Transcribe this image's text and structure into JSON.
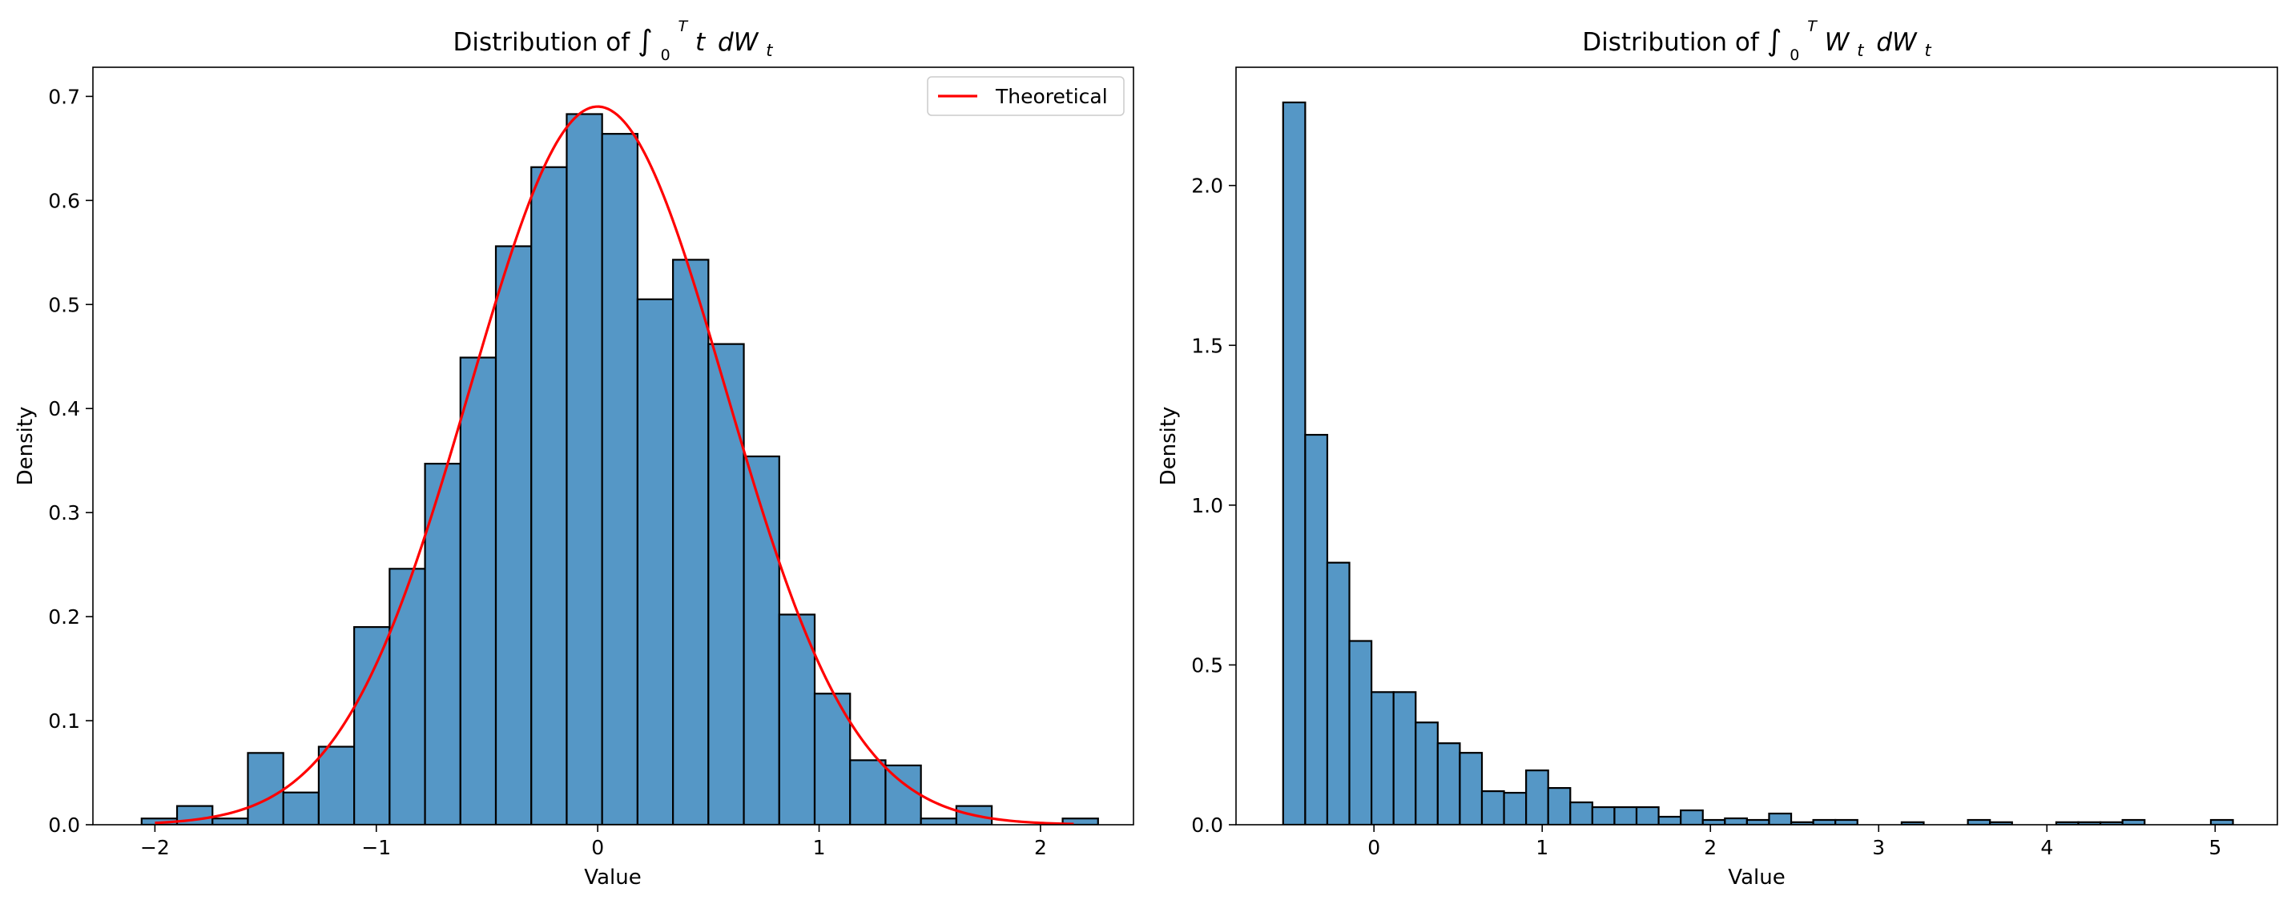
{
  "chart_data": [
    {
      "type": "bar",
      "title_prefix": "Distribution of",
      "title_math": {
        "upper": "T",
        "lower": "0",
        "integrand_left": "t",
        "integrand_right": "dW",
        "integrand_sub": "t"
      },
      "xlabel": "Value",
      "ylabel": "Density",
      "xlim": [
        -2.28,
        2.42
      ],
      "ylim": [
        0,
        0.728
      ],
      "xticks": [
        -2,
        -1,
        0,
        1,
        2
      ],
      "xtick_labels": [
        "−2",
        "−1",
        "0",
        "1",
        "2"
      ],
      "yticks": [
        0,
        0.1,
        0.2,
        0.3,
        0.4,
        0.5,
        0.6,
        0.7
      ],
      "ytick_labels": [
        "0.0",
        "0.1",
        "0.2",
        "0.3",
        "0.4",
        "0.5",
        "0.6",
        "0.7"
      ],
      "bin_start": -2.06,
      "bin_width": 0.16,
      "values": [
        0.006,
        0.018,
        0.006,
        0.069,
        0.031,
        0.075,
        0.19,
        0.246,
        0.347,
        0.449,
        0.556,
        0.632,
        0.683,
        0.664,
        0.505,
        0.543,
        0.462,
        0.354,
        0.202,
        0.126,
        0.062,
        0.057,
        0.006,
        0.018,
        0.0,
        0.0,
        0.006
      ],
      "bar_color": "#5597c6",
      "curve": {
        "name": "Theoretical",
        "distribution": "normal",
        "mean": 0,
        "std": 0.578,
        "x_range": [
          -2.0,
          2.15
        ],
        "color": "#ff0000"
      },
      "legend": {
        "position": "upper right",
        "entries": [
          "Theoretical"
        ]
      },
      "grid": false
    },
    {
      "type": "bar",
      "title_prefix": "Distribution of",
      "title_math": {
        "upper": "T",
        "lower": "0",
        "integrand_left": "W",
        "integrand_left_sub": "t",
        "integrand_right": "dW",
        "integrand_sub": "t"
      },
      "xlabel": "Value",
      "ylabel": "Density",
      "xlim": [
        -0.82,
        5.37
      ],
      "ylim": [
        0,
        2.37
      ],
      "xticks": [
        0,
        1,
        2,
        3,
        4,
        5
      ],
      "xtick_labels": [
        "0",
        "1",
        "2",
        "3",
        "4",
        "5"
      ],
      "yticks": [
        0,
        0.5,
        1.0,
        1.5,
        2.0
      ],
      "ytick_labels": [
        "0.0",
        "0.5",
        "1.0",
        "1.5",
        "2.0"
      ],
      "bin_start": -0.54,
      "bin_width": 0.1313,
      "values": [
        2.26,
        1.22,
        0.82,
        0.575,
        0.415,
        0.415,
        0.32,
        0.255,
        0.225,
        0.105,
        0.1,
        0.17,
        0.115,
        0.07,
        0.055,
        0.055,
        0.055,
        0.025,
        0.045,
        0.015,
        0.02,
        0.015,
        0.035,
        0.008,
        0.015,
        0.015,
        0.0,
        0.0,
        0.008,
        0.0,
        0.0,
        0.015,
        0.008,
        0.0,
        0.0,
        0.008,
        0.008,
        0.008,
        0.015,
        0.0,
        0.0,
        0.0,
        0.015
      ],
      "bar_color": "#5597c6",
      "grid": false
    }
  ]
}
